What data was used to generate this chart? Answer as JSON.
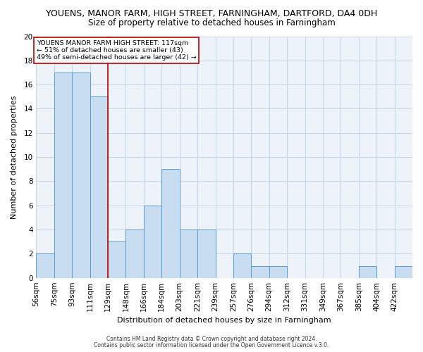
{
  "title": "YOUENS, MANOR FARM, HIGH STREET, FARNINGHAM, DARTFORD, DA4 0DH",
  "subtitle": "Size of property relative to detached houses in Farningham",
  "xlabel": "Distribution of detached houses by size in Farningham",
  "ylabel": "Number of detached properties",
  "bin_labels": [
    "56sqm",
    "75sqm",
    "93sqm",
    "111sqm",
    "129sqm",
    "148sqm",
    "166sqm",
    "184sqm",
    "203sqm",
    "221sqm",
    "239sqm",
    "257sqm",
    "276sqm",
    "294sqm",
    "312sqm",
    "331sqm",
    "349sqm",
    "367sqm",
    "385sqm",
    "404sqm",
    "422sqm"
  ],
  "counts": [
    2,
    17,
    17,
    15,
    3,
    4,
    6,
    9,
    4,
    4,
    0,
    2,
    1,
    1,
    0,
    0,
    0,
    0,
    1,
    0,
    1
  ],
  "bar_color": "#c9ddf0",
  "bar_edge_color": "#5b9bd5",
  "property_bar_index": 3,
  "property_line_color": "#c00000",
  "annotation_line1": "YOUENS MANOR FARM HIGH STREET: 117sqm",
  "annotation_line2": "← 51% of detached houses are smaller (43)",
  "annotation_line3": "49% of semi-detached houses are larger (42) →",
  "annotation_box_edge": "#c00000",
  "ylim": [
    0,
    20
  ],
  "yticks": [
    0,
    2,
    4,
    6,
    8,
    10,
    12,
    14,
    16,
    18,
    20
  ],
  "grid_color": "#c8d8e8",
  "bg_color": "#eef3f9",
  "title_fontsize": 9,
  "subtitle_fontsize": 8.5,
  "footer1": "Contains HM Land Registry data © Crown copyright and database right 2024.",
  "footer2": "Contains public sector information licensed under the Open Government Licence v.3.0."
}
